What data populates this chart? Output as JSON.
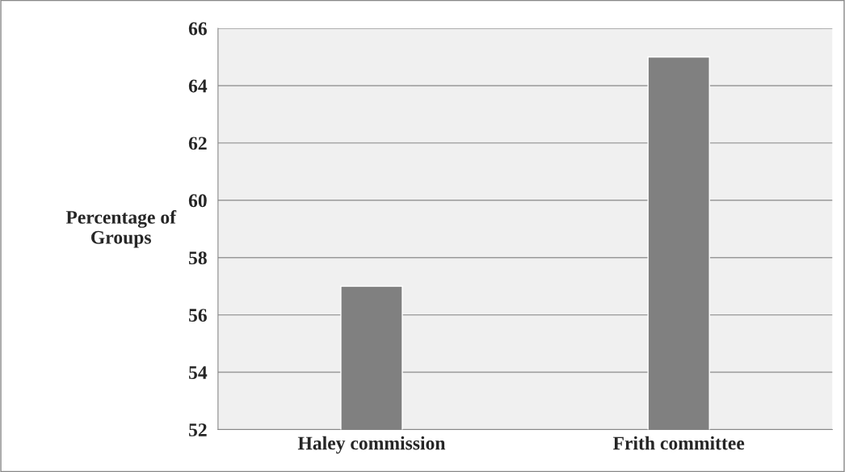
{
  "chart_data": {
    "type": "bar",
    "ylabel": "Percentage of\nGroups",
    "categories": [
      "Haley commission",
      "Frith committee"
    ],
    "values": [
      57,
      65
    ],
    "color": "#808080",
    "ylim": [
      52,
      66
    ],
    "yticks": [
      52,
      54,
      56,
      58,
      60,
      62,
      64,
      66
    ],
    "grid": "y",
    "legend": false
  }
}
